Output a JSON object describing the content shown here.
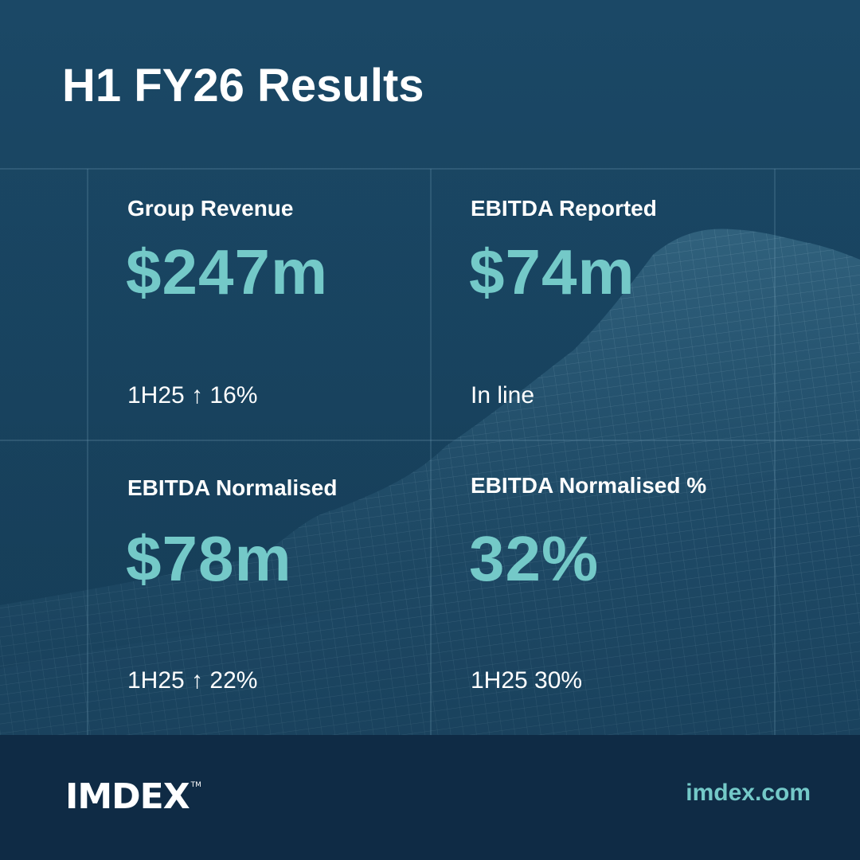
{
  "title": "H1 FY26 Results",
  "metrics": [
    {
      "label": "Group Revenue",
      "value": "$247m",
      "compare": "1H25 ↑ 16%"
    },
    {
      "label": "EBITDA Reported",
      "value": "$74m",
      "compare": "In line"
    },
    {
      "label": "EBITDA Normalised",
      "value": "$78m",
      "compare": "1H25 ↑ 22%"
    },
    {
      "label": "EBITDA Normalised %",
      "value": "32%",
      "compare": "1H25 30%"
    }
  ],
  "footer": {
    "logo": "IMDEX",
    "logo_tm": "TM",
    "website": "imdex.com"
  },
  "colors": {
    "background": "#18435f",
    "accent": "#74c9c8",
    "footer": "#0f2b45",
    "text": "#ffffff"
  },
  "icons": {
    "background": "wireframe-terrain-mountain"
  }
}
